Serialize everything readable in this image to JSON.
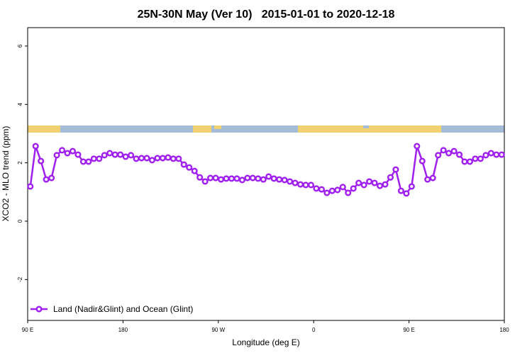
{
  "chart_data": {
    "type": "line",
    "title": "25N-30N May (Ver 10)   2015-01-01 to 2020-12-18",
    "x_label": "Longitude (deg E)",
    "y_label": "XCO2 - MLO trend (ppm)",
    "x": [
      92.5,
      97.5,
      102.5,
      107.5,
      112.5,
      117.5,
      122.5,
      127.5,
      132.5,
      137.5,
      142.5,
      147.5,
      152.5,
      157.5,
      162.5,
      167.5,
      172.5,
      177.5,
      182.5,
      187.5,
      192.5,
      197.5,
      202.5,
      207.5,
      212.5,
      217.5,
      222.5,
      227.5,
      232.5,
      237.5,
      242.5,
      247.5,
      252.5,
      257.5,
      262.5,
      267.5,
      272.5,
      277.5,
      282.5,
      287.5,
      292.5,
      297.5,
      302.5,
      307.5,
      312.5,
      317.5,
      322.5,
      327.5,
      332.5,
      337.5,
      342.5,
      347.5,
      352.5,
      357.5,
      362.5,
      367.5,
      372.5,
      377.5,
      382.5,
      387.5,
      392.5,
      397.5,
      402.5,
      407.5,
      412.5,
      417.5,
      422.5,
      427.5,
      432.5,
      437.5,
      442.5,
      447.5,
      452.5,
      457.5,
      462.5,
      467.5,
      472.5,
      477.5,
      482.5,
      487.5,
      492.5,
      497.5,
      502.5,
      507.5,
      512.5,
      517.5,
      522.5,
      527.5,
      532.5,
      537.5
    ],
    "series": [
      {
        "name": "Land (Nadir&Glint) and Ocean (Glint)",
        "color": "#a020f0",
        "values": [
          1.19,
          2.57,
          2.06,
          1.43,
          1.48,
          2.26,
          2.43,
          2.33,
          2.4,
          2.28,
          2.04,
          2.04,
          2.14,
          2.14,
          2.26,
          2.33,
          2.28,
          2.28,
          2.21,
          2.26,
          2.14,
          2.16,
          2.16,
          2.09,
          2.16,
          2.16,
          2.18,
          2.14,
          2.14,
          1.94,
          1.84,
          1.72,
          1.5,
          1.36,
          1.48,
          1.48,
          1.43,
          1.46,
          1.46,
          1.46,
          1.41,
          1.48,
          1.48,
          1.46,
          1.43,
          1.53,
          1.46,
          1.43,
          1.41,
          1.36,
          1.31,
          1.26,
          1.24,
          1.24,
          1.12,
          1.09,
          0.97,
          1.04,
          1.07,
          1.17,
          0.97,
          1.12,
          1.31,
          1.24,
          1.36,
          1.31,
          1.21,
          1.26,
          1.5,
          1.77,
          1.04,
          0.95,
          1.19,
          2.57,
          2.06,
          1.43,
          1.48,
          2.26,
          2.43,
          2.33,
          2.4,
          2.28,
          2.04,
          2.04,
          2.14,
          2.14,
          2.26,
          2.33,
          2.28,
          2.28
        ]
      }
    ],
    "xlim": [
      90,
      540
    ],
    "xticks": [
      {
        "value": 90,
        "label": "90 E"
      },
      180,
      {
        "value": 270,
        "label": "90 W"
      },
      {
        "value": 360,
        "label": "0"
      },
      {
        "value": 450,
        "label": "90 E"
      },
      {
        "value": 540,
        "label": "180"
      }
    ],
    "ylim": [
      -3.4,
      6.63
    ],
    "yticks": [
      -2,
      0,
      2,
      4,
      6
    ],
    "grid": false,
    "legend": "bottom-left"
  }
}
